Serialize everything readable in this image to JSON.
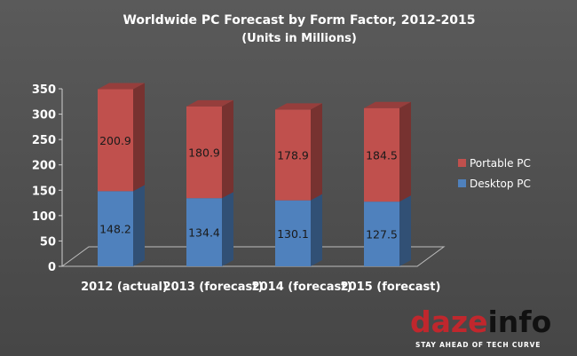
{
  "chart_data": {
    "type": "bar",
    "stacked": true,
    "three_d": true,
    "title": "Worldwide PC Forecast by Form Factor, 2012-2015",
    "subtitle": "(Units in Millions)",
    "categories": [
      "2012 (actual)",
      "2013 (forecast)",
      "2014 (forecast)",
      "2015 (forecast)"
    ],
    "series": [
      {
        "name": "Desktop PC",
        "values": [
          148.2,
          134.4,
          130.1,
          127.5
        ],
        "color": "#4f81bd"
      },
      {
        "name": "Portable PC",
        "values": [
          200.9,
          180.9,
          178.9,
          184.5
        ],
        "color": "#c0504d"
      }
    ],
    "ylim": [
      0,
      350
    ],
    "yticks": [
      "0",
      "50",
      "100",
      "150",
      "200",
      "250",
      "300",
      "350"
    ],
    "legend_position": "right",
    "grid": false
  },
  "logo": {
    "text": "dazeinfo",
    "tagline": "STAY AHEAD OF TECH CURVE"
  }
}
